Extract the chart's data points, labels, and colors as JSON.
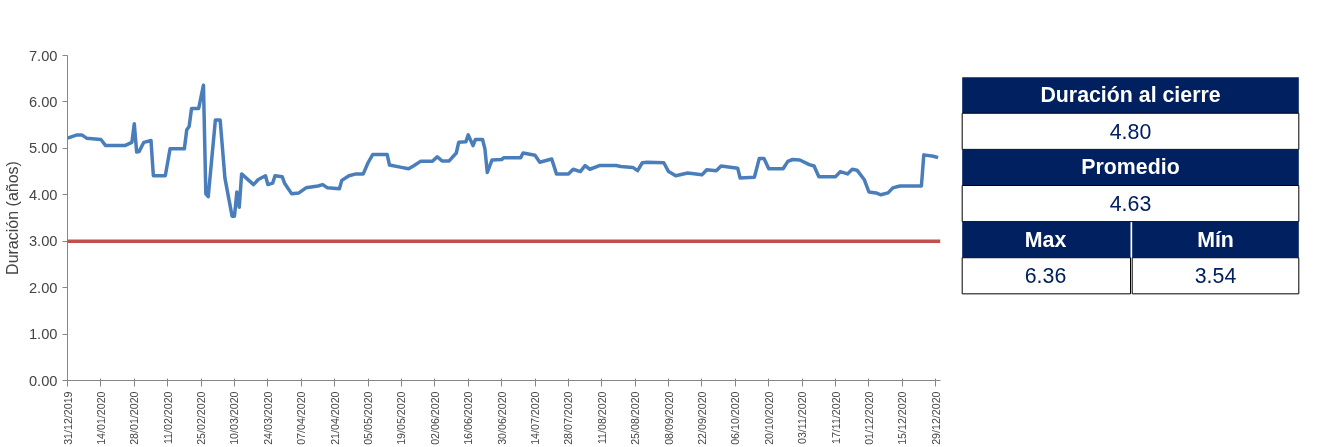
{
  "chart_data": [
    {
      "type": "line",
      "ylabel": "Duración (años)",
      "x": [
        "2019-12-31",
        "2020-01-04",
        "2020-01-06",
        "2020-01-08",
        "2020-01-14",
        "2020-01-16",
        "2020-01-24",
        "2020-01-27",
        "2020-01-28",
        "2020-01-29",
        "2020-01-30",
        "2020-02-01",
        "2020-02-04",
        "2020-02-05",
        "2020-02-10",
        "2020-02-12",
        "2020-02-18",
        "2020-02-19",
        "2020-02-20",
        "2020-02-21",
        "2020-02-24",
        "2020-02-26",
        "2020-02-27",
        "2020-02-28",
        "2020-03-02",
        "2020-03-04",
        "2020-03-06",
        "2020-03-09",
        "2020-03-10",
        "2020-03-11",
        "2020-03-12",
        "2020-03-13",
        "2020-03-18",
        "2020-03-20",
        "2020-03-23",
        "2020-03-24",
        "2020-03-26",
        "2020-03-27",
        "2020-03-30",
        "2020-03-31",
        "2020-04-03",
        "2020-04-06",
        "2020-04-09",
        "2020-04-14",
        "2020-04-16",
        "2020-04-18",
        "2020-04-23",
        "2020-04-24",
        "2020-04-27",
        "2020-04-30",
        "2020-05-03",
        "2020-05-05",
        "2020-05-07",
        "2020-05-13",
        "2020-05-14",
        "2020-05-19",
        "2020-05-22",
        "2020-05-24",
        "2020-05-27",
        "2020-06-01",
        "2020-06-03",
        "2020-06-05",
        "2020-06-08",
        "2020-06-11",
        "2020-06-12",
        "2020-06-15",
        "2020-06-16",
        "2020-06-18",
        "2020-06-19",
        "2020-06-22",
        "2020-06-23",
        "2020-06-24",
        "2020-06-26",
        "2020-06-30",
        "2020-07-01",
        "2020-07-08",
        "2020-07-09",
        "2020-07-14",
        "2020-07-16",
        "2020-07-21",
        "2020-07-23",
        "2020-07-28",
        "2020-07-30",
        "2020-08-02",
        "2020-08-04",
        "2020-08-06",
        "2020-08-10",
        "2020-08-17",
        "2020-08-19",
        "2020-08-24",
        "2020-08-26",
        "2020-08-28",
        "2020-08-30",
        "2020-09-06",
        "2020-09-08",
        "2020-09-11",
        "2020-09-16",
        "2020-09-22",
        "2020-09-24",
        "2020-09-28",
        "2020-09-30",
        "2020-10-07",
        "2020-10-08",
        "2020-10-14",
        "2020-10-16",
        "2020-10-18",
        "2020-10-20",
        "2020-10-26",
        "2020-10-28",
        "2020-10-30",
        "2020-11-02",
        "2020-11-06",
        "2020-11-08",
        "2020-11-10",
        "2020-11-17",
        "2020-11-19",
        "2020-11-22",
        "2020-11-24",
        "2020-11-26",
        "2020-11-29",
        "2020-12-01",
        "2020-12-04",
        "2020-12-06",
        "2020-12-09",
        "2020-12-11",
        "2020-12-14",
        "2020-12-23",
        "2020-12-24",
        "2020-12-28",
        "2020-12-30"
      ],
      "series": [
        {
          "color": "#4a7ebb",
          "values": [
            5.22,
            5.29,
            5.29,
            5.22,
            5.19,
            5.06,
            5.06,
            5.13,
            5.53,
            4.92,
            4.93,
            5.13,
            5.17,
            4.41,
            4.41,
            4.99,
            4.99,
            5.4,
            5.47,
            5.86,
            5.86,
            6.36,
            4.02,
            3.96,
            5.61,
            5.61,
            4.36,
            3.54,
            3.54,
            4.06,
            3.73,
            4.45,
            4.22,
            4.33,
            4.41,
            4.22,
            4.25,
            4.41,
            4.39,
            4.25,
            4.02,
            4.04,
            4.15,
            4.19,
            4.22,
            4.15,
            4.13,
            4.31,
            4.41,
            4.45,
            4.45,
            4.69,
            4.87,
            4.87,
            4.64,
            4.59,
            4.56,
            4.62,
            4.72,
            4.72,
            4.82,
            4.73,
            4.73,
            4.9,
            5.13,
            5.14,
            5.29,
            5.06,
            5.19,
            5.19,
            4.99,
            4.48,
            4.75,
            4.76,
            4.8,
            4.8,
            4.9,
            4.85,
            4.7,
            4.77,
            4.45,
            4.45,
            4.55,
            4.5,
            4.63,
            4.55,
            4.63,
            4.63,
            4.61,
            4.59,
            4.52,
            4.69,
            4.7,
            4.69,
            4.5,
            4.41,
            4.47,
            4.43,
            4.54,
            4.52,
            4.62,
            4.57,
            4.36,
            4.38,
            4.78,
            4.78,
            4.56,
            4.56,
            4.72,
            4.76,
            4.75,
            4.65,
            4.62,
            4.39,
            4.39,
            4.5,
            4.45,
            4.55,
            4.53,
            4.33,
            4.06,
            4.04,
            4.0,
            4.04,
            4.15,
            4.19,
            4.19,
            4.86,
            4.83,
            4.8
          ]
        }
      ],
      "xlim": [
        "2019-12-31",
        "2020-12-31"
      ],
      "xticks": [
        {
          "value": "2019-12-31",
          "label": "31/12/2019"
        },
        {
          "value": "2020-01-14",
          "label": "14/01/2020"
        },
        {
          "value": "2020-01-28",
          "label": "28/01/2020"
        },
        {
          "value": "2020-02-11",
          "label": "11/02/2020"
        },
        {
          "value": "2020-02-25",
          "label": "25/02/2020"
        },
        {
          "value": "2020-03-10",
          "label": "10/03/2020"
        },
        {
          "value": "2020-03-24",
          "label": "24/03/2020"
        },
        {
          "value": "2020-04-07",
          "label": "07/04/2020"
        },
        {
          "value": "2020-04-21",
          "label": "21/04/2020"
        },
        {
          "value": "2020-05-05",
          "label": "05/05/2020"
        },
        {
          "value": "2020-05-19",
          "label": "19/05/2020"
        },
        {
          "value": "2020-06-02",
          "label": "02/06/2020"
        },
        {
          "value": "2020-06-16",
          "label": "16/06/2020"
        },
        {
          "value": "2020-06-30",
          "label": "30/06/2020"
        },
        {
          "value": "2020-07-14",
          "label": "14/07/2020"
        },
        {
          "value": "2020-07-28",
          "label": "28/07/2020"
        },
        {
          "value": "2020-08-11",
          "label": "11/08/2020"
        },
        {
          "value": "2020-08-25",
          "label": "25/08/2020"
        },
        {
          "value": "2020-09-08",
          "label": "08/09/2020"
        },
        {
          "value": "2020-09-22",
          "label": "22/09/2020"
        },
        {
          "value": "2020-10-06",
          "label": "06/10/2020"
        },
        {
          "value": "2020-10-20",
          "label": "20/10/2020"
        },
        {
          "value": "2020-11-03",
          "label": "03/11/2020"
        },
        {
          "value": "2020-11-17",
          "label": "17/11/2020"
        },
        {
          "value": "2020-12-01",
          "label": "01/12/2020"
        },
        {
          "value": "2020-12-15",
          "label": "15/12/2020"
        },
        {
          "value": "2020-12-29",
          "label": "29/12/2020"
        }
      ],
      "ylim": [
        0,
        7
      ],
      "yticks": [
        {
          "value": 0,
          "label": "0.00"
        },
        {
          "value": 1,
          "label": "1.00"
        },
        {
          "value": 2,
          "label": "2.00"
        },
        {
          "value": 3,
          "label": "3.00"
        },
        {
          "value": 4,
          "label": "4.00"
        },
        {
          "value": 5,
          "label": "5.00"
        },
        {
          "value": 6,
          "label": "6.00"
        },
        {
          "value": 7,
          "label": "7.00"
        }
      ],
      "ref_lines": [
        {
          "axis": "y",
          "value": 3,
          "color": "#c0504d"
        }
      ],
      "grid": false,
      "marker": "none",
      "line_style": "solid"
    },
    {
      "type": "other",
      "annotations": [
        "Duración al cierre",
        "4.80",
        "Promedio",
        "4.63",
        "Max",
        "Mín",
        "6.36",
        "3.54"
      ]
    }
  ]
}
